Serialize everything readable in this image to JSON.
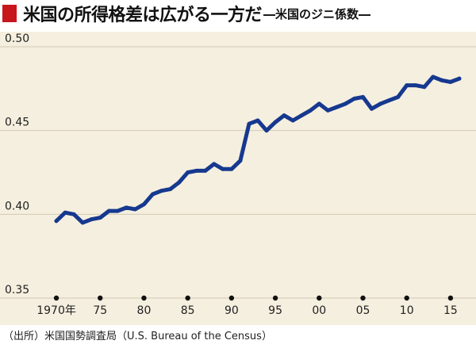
{
  "title": {
    "main": "米国の所得格差は広がる一方だ",
    "sub": "―米国のジニ係数―"
  },
  "source": "（出所）米国国勢調査局（U.S. Bureau of the Census）",
  "colors": {
    "background": "#f5efdf",
    "line": "#16398f",
    "grid": "#d4cab4",
    "title_marker": "#c8161d"
  },
  "chart_data": {
    "type": "line",
    "title": "米国のジニ係数",
    "ylim": [
      0.35,
      0.5
    ],
    "xlim": [
      1969,
      2017
    ],
    "yticks": [
      0.35,
      0.4,
      0.45,
      0.5
    ],
    "ytick_labels": [
      "0.35",
      "0.40",
      "0.45",
      "0.50"
    ],
    "xticks": [
      1970,
      1975,
      1980,
      1985,
      1990,
      1995,
      2000,
      2005,
      2010,
      2015
    ],
    "xtick_labels": [
      "1970年",
      "75",
      "80",
      "85",
      "90",
      "95",
      "00",
      "05",
      "10",
      "15"
    ],
    "grid": "horizontal",
    "series": [
      {
        "x": [
          1970,
          1971,
          1972,
          1973,
          1974,
          1975,
          1976,
          1977,
          1978,
          1979,
          1980,
          1981,
          1982,
          1983,
          1984,
          1985,
          1986,
          1987,
          1988,
          1989,
          1990,
          1991,
          1992,
          1993,
          1994,
          1995,
          1996,
          1997,
          1998,
          1999,
          2000,
          2001,
          2002,
          2003,
          2004,
          2005,
          2006,
          2007,
          2008,
          2009,
          2010,
          2011,
          2012,
          2013,
          2014,
          2015,
          2016
        ],
        "values": [
          0.396,
          0.401,
          0.4,
          0.395,
          0.397,
          0.398,
          0.402,
          0.402,
          0.404,
          0.403,
          0.406,
          0.412,
          0.414,
          0.415,
          0.419,
          0.425,
          0.426,
          0.426,
          0.43,
          0.427,
          0.427,
          0.432,
          0.454,
          0.456,
          0.45,
          0.455,
          0.459,
          0.456,
          0.459,
          0.462,
          0.466,
          0.462,
          0.464,
          0.466,
          0.469,
          0.47,
          0.463,
          0.466,
          0.468,
          0.47,
          0.477,
          0.477,
          0.476,
          0.482,
          0.48,
          0.479,
          0.481
        ]
      }
    ]
  }
}
